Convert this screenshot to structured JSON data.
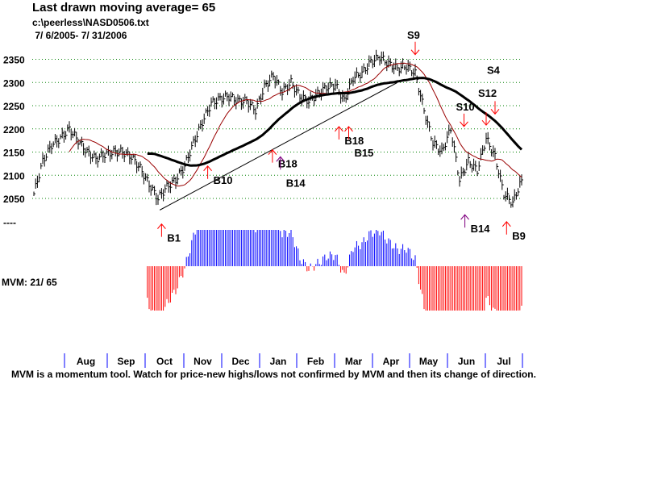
{
  "header": {
    "title": "Last drawn moving average= 65",
    "file": "c:\\peerless\\NASD0506.txt",
    "dates": " 7/ 6/2005- 7/ 31/2006"
  },
  "mvm_label": "MVM: 21/ 65",
  "footer": "MVM is a momentum tool. Watch for price-new highs/lows not confirmed by MVM and then its change of direction.",
  "chart_data": {
    "type": "line",
    "title": "Last drawn moving average= 65",
    "ylabel": "",
    "xlabel": "",
    "ylim": [
      2000,
      2400
    ],
    "yticks": [
      "2350",
      "2300",
      "2250",
      "2200",
      "2150",
      "2100",
      "2050",
      "----"
    ],
    "ytick_values": [
      2350,
      2300,
      2250,
      2200,
      2150,
      2100,
      2050,
      2000
    ],
    "grid": true,
    "months": [
      "Aug",
      "Sep",
      "Oct",
      "Nov",
      "Dec",
      "Jan",
      "Feb",
      "Mar",
      "Apr",
      "May",
      "Jun",
      "Jul"
    ],
    "weekly_close": [
      2060,
      2130,
      2165,
      2180,
      2200,
      2175,
      2150,
      2135,
      2145,
      2150,
      2150,
      2140,
      2115,
      2080,
      2050,
      2075,
      2090,
      2120,
      2170,
      2215,
      2255,
      2265,
      2270,
      2260,
      2260,
      2240,
      2290,
      2315,
      2280,
      2300,
      2270,
      2260,
      2275,
      2290,
      2295,
      2260,
      2310,
      2320,
      2345,
      2355,
      2340,
      2330,
      2335,
      2320,
      2240,
      2170,
      2150,
      2200,
      2090,
      2130,
      2110,
      2180,
      2140,
      2060,
      2040,
      2090
    ],
    "series": [
      {
        "name": "Price (weekly close)",
        "color": "#000000"
      },
      {
        "name": "Short moving average",
        "color": "#990000"
      },
      {
        "name": "65-day moving average",
        "color": "#000000"
      }
    ],
    "signals": [
      {
        "label": "B1",
        "week": 14.4,
        "price": 1995,
        "type": "buy",
        "color": "#ff0000"
      },
      {
        "label": "B10",
        "week": 19.6,
        "price": 2120,
        "type": "buy",
        "color": "#ff0000"
      },
      {
        "label": "B18",
        "week": 26.9,
        "price": 2155,
        "type": "buy",
        "color": "#ff0000"
      },
      {
        "label": "B14",
        "week": 27.8,
        "price": 2140,
        "type": "buy",
        "color": "#800080"
      },
      {
        "label": "B18",
        "week": 34.4,
        "price": 2205,
        "type": "buy",
        "color": "#ff0000"
      },
      {
        "label": "B15",
        "week": 35.5,
        "price": 2205,
        "type": "buy",
        "color": "#ff0000"
      },
      {
        "label": "S9",
        "week": 43.0,
        "price": 2360,
        "type": "sell",
        "color": "#ff0000"
      },
      {
        "label": "S10",
        "week": 48.5,
        "price": 2205,
        "type": "sell",
        "color": "#ff0000"
      },
      {
        "label": "B14",
        "week": 48.6,
        "price": 2015,
        "type": "buy",
        "color": "#800080"
      },
      {
        "label": "S12",
        "week": 51.0,
        "price": 2208,
        "type": "sell",
        "color": "#ff0000"
      },
      {
        "label": "S4",
        "week": 52.0,
        "price": 2232,
        "type": "sell",
        "color": "#ff0000"
      },
      {
        "label": "B9",
        "week": 53.3,
        "price": 2000,
        "type": "buy",
        "color": "#ff0000"
      }
    ],
    "colors": {
      "grid": "#008000",
      "mvm_pos": "#0000ff",
      "mvm_neg": "#ff0000",
      "month_tick": "#0000ff"
    }
  }
}
